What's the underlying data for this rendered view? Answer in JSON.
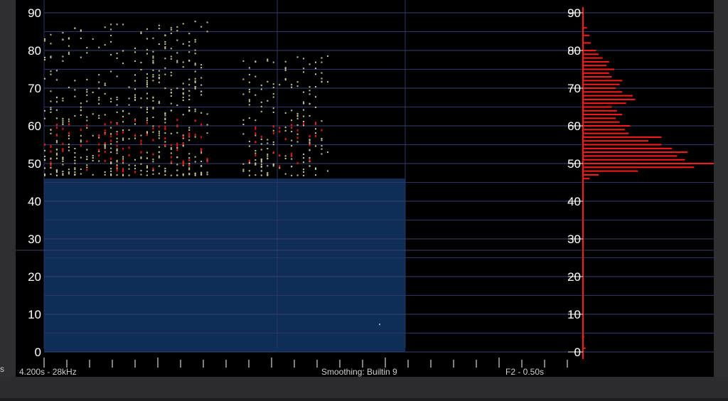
{
  "left_label": "s",
  "status": {
    "range": "4.200s - 28kHz",
    "smoothing": "Smoothing: Builtin 9",
    "frame": "F2 - 0.50s"
  },
  "colors": {
    "background": "#000000",
    "grid": "#2d3566",
    "selection": "#0e2d57",
    "histogram": "#ff1a1a",
    "points": "#c8c89a",
    "hot_points": "#e01818"
  },
  "chart_data": [
    {
      "type": "scatter",
      "title": "",
      "xlabel": "",
      "ylabel": "",
      "ylim": [
        0,
        90
      ],
      "y_ticks": [
        "0",
        "10",
        "20",
        "30",
        "40",
        "50",
        "60",
        "70",
        "80",
        "90"
      ],
      "grid": true,
      "selection_region": {
        "y_from": 0,
        "y_to": 46
      },
      "clusters": [
        {
          "x_from": 0.0,
          "x_to": 0.45,
          "y_from": 47,
          "y_to": 88
        },
        {
          "x_from": 0.55,
          "x_to": 0.78,
          "y_from": 47,
          "y_to": 79
        }
      ]
    },
    {
      "type": "bar",
      "orientation": "horizontal",
      "xlabel": "",
      "ylabel": "",
      "ylim": [
        0,
        90
      ],
      "y_ticks": [
        "0",
        "10",
        "20",
        "30",
        "40",
        "50",
        "60",
        "70",
        "80",
        "90"
      ],
      "bins": [
        {
          "y": 46,
          "value": 0.05
        },
        {
          "y": 47,
          "value": 0.12
        },
        {
          "y": 48,
          "value": 0.42
        },
        {
          "y": 49,
          "value": 0.85
        },
        {
          "y": 50,
          "value": 1.0
        },
        {
          "y": 51,
          "value": 0.78
        },
        {
          "y": 52,
          "value": 0.72
        },
        {
          "y": 53,
          "value": 0.8
        },
        {
          "y": 54,
          "value": 0.68
        },
        {
          "y": 55,
          "value": 0.6
        },
        {
          "y": 56,
          "value": 0.5
        },
        {
          "y": 57,
          "value": 0.6
        },
        {
          "y": 58,
          "value": 0.35
        },
        {
          "y": 59,
          "value": 0.32
        },
        {
          "y": 60,
          "value": 0.36
        },
        {
          "y": 61,
          "value": 0.28
        },
        {
          "y": 62,
          "value": 0.25
        },
        {
          "y": 63,
          "value": 0.3
        },
        {
          "y": 64,
          "value": 0.26
        },
        {
          "y": 65,
          "value": 0.22
        },
        {
          "y": 66,
          "value": 0.33
        },
        {
          "y": 67,
          "value": 0.4
        },
        {
          "y": 68,
          "value": 0.38
        },
        {
          "y": 69,
          "value": 0.3
        },
        {
          "y": 70,
          "value": 0.25
        },
        {
          "y": 71,
          "value": 0.28
        },
        {
          "y": 72,
          "value": 0.3
        },
        {
          "y": 73,
          "value": 0.22
        },
        {
          "y": 74,
          "value": 0.2
        },
        {
          "y": 75,
          "value": 0.24
        },
        {
          "y": 76,
          "value": 0.18
        },
        {
          "y": 77,
          "value": 0.2
        },
        {
          "y": 78,
          "value": 0.15
        },
        {
          "y": 79,
          "value": 0.12
        },
        {
          "y": 80,
          "value": 0.1
        },
        {
          "y": 82,
          "value": 0.06
        },
        {
          "y": 84,
          "value": 0.05
        },
        {
          "y": 86,
          "value": 0.03
        },
        {
          "y": 1,
          "value": 0.02
        },
        {
          "y": 4,
          "value": 0.01
        }
      ]
    }
  ]
}
